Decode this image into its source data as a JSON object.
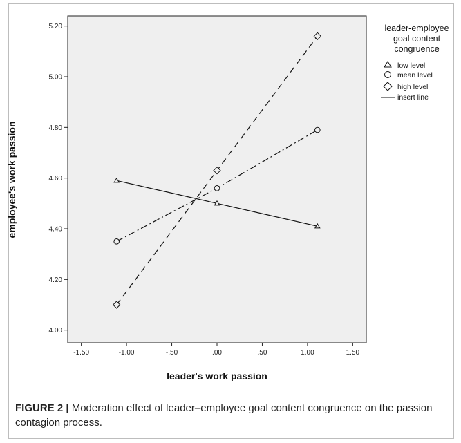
{
  "chart_data": {
    "type": "line",
    "xlabel": "leader's work passion",
    "ylabel": "employee's work passion",
    "xlim": [
      -1.65,
      1.65
    ],
    "ylim": [
      3.95,
      5.24
    ],
    "x_ticks": [
      -1.5,
      -1.0,
      -0.5,
      0.0,
      0.5,
      1.0,
      1.5
    ],
    "x_tick_labels": [
      "-1.50",
      "-1.00",
      "-.50",
      ".00",
      ".50",
      "1.00",
      "1.50"
    ],
    "y_ticks": [
      4.0,
      4.2,
      4.4,
      4.6,
      4.8,
      5.0,
      5.2
    ],
    "y_tick_labels": [
      "4.00",
      "4.20",
      "4.40",
      "4.60",
      "4.80",
      "5.00",
      "5.20"
    ],
    "grid": false,
    "legend_title": "leader-employee goal content congruence",
    "legend_placement": "right",
    "series": [
      {
        "name": "low level",
        "marker": "triangle",
        "linestyle": "solid",
        "x": [
          -1.11,
          0.0,
          1.11
        ],
        "y": [
          4.59,
          4.5,
          4.41
        ]
      },
      {
        "name": "mean level",
        "marker": "circle",
        "linestyle": "dashdot",
        "x": [
          -1.11,
          0.0,
          1.11
        ],
        "y": [
          4.35,
          4.56,
          4.79
        ]
      },
      {
        "name": "high level",
        "marker": "diamond",
        "linestyle": "dashed",
        "x": [
          -1.11,
          0.0,
          1.11
        ],
        "y": [
          4.1,
          4.63,
          5.16
        ]
      }
    ],
    "legend_extra": "insert line"
  },
  "legend": {
    "title_lines": [
      "leader-employee",
      "goal content",
      "congruence"
    ]
  },
  "caption": {
    "label": "FIGURE 2 |",
    "text": " Moderation effect of leader–employee goal content congruence on the passion contagion process."
  }
}
